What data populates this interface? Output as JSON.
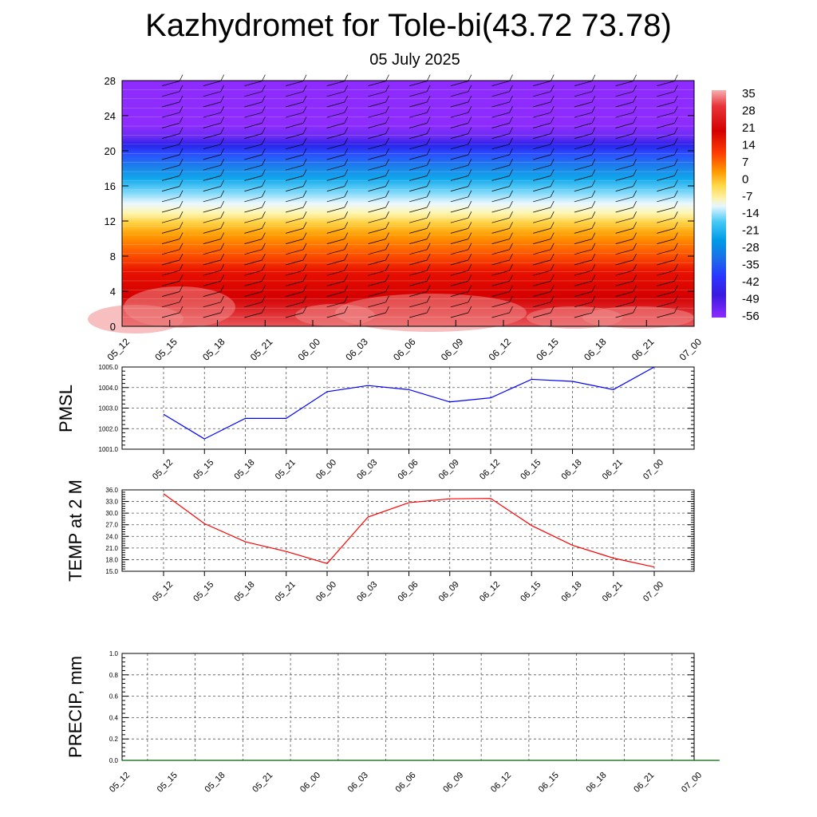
{
  "header": {
    "title": "Kazhydromet for Tole-bi(43.72 73.78)",
    "subtitle": "05 July 2025"
  },
  "time_labels": [
    "05_12",
    "05_15",
    "05_18",
    "05_21",
    "06_00",
    "06_03",
    "06_06",
    "06_09",
    "06_12",
    "06_15",
    "06_18",
    "06_21",
    "07_00"
  ],
  "chart_data": [
    {
      "type": "heatmap",
      "description_key": "vertical cross-section",
      "x": [
        "05_12",
        "05_15",
        "05_18",
        "05_21",
        "06_00",
        "06_03",
        "06_06",
        "06_09",
        "06_12",
        "06_15",
        "06_18",
        "06_21",
        "07_00"
      ],
      "ylim": [
        0,
        28
      ],
      "yticks": [
        0,
        4,
        8,
        12,
        16,
        20,
        24,
        28
      ],
      "colorbar_labels": [
        "35",
        "28",
        "21",
        "14",
        "7",
        "0",
        "-7",
        "-14",
        "-21",
        "-28",
        "-35",
        "-42",
        "-49",
        "-56"
      ],
      "colorbar_colors": [
        "#f4a3a3",
        "#e8343a",
        "#d40000",
        "#ff4000",
        "#ff9a00",
        "#ffd84a",
        "#fff0a0",
        "#e7f6ff",
        "#45c8f5",
        "#009be6",
        "#1a6ee8",
        "#2836ff",
        "#3a1ae0",
        "#8e2cff"
      ],
      "grid": false
    },
    {
      "type": "line",
      "ylabel": "PMSL",
      "x": [
        "05_12",
        "05_15",
        "05_18",
        "05_21",
        "06_00",
        "06_03",
        "06_06",
        "06_09",
        "06_12",
        "06_15",
        "06_18",
        "06_21",
        "07_00"
      ],
      "series": [
        {
          "values": [
            1002.7,
            1001.5,
            1002.5,
            1002.5,
            1003.8,
            1004.1,
            1003.9,
            1003.3,
            1003.5,
            1004.4,
            1004.3,
            1003.9,
            1005.0
          ],
          "color": "#0000ff"
        }
      ],
      "ylim": [
        1001.0,
        1005.0
      ],
      "ytick_labels": [
        "1001.0",
        "1002.0",
        "1003.0",
        "1004.0",
        "1005.0"
      ],
      "grid": true
    },
    {
      "type": "line",
      "ylabel": "TEMP at 2 M",
      "x": [
        "05_12",
        "05_15",
        "05_18",
        "05_21",
        "06_00",
        "06_03",
        "06_06",
        "06_09",
        "06_12",
        "06_15",
        "06_18",
        "06_21",
        "07_00"
      ],
      "series": [
        {
          "values": [
            35.0,
            27.3,
            22.6,
            20.1,
            17.0,
            29.0,
            32.7,
            33.7,
            33.8,
            26.8,
            21.7,
            18.4,
            16.1
          ],
          "color": "#ff0000"
        }
      ],
      "ylim": [
        15.0,
        36.0
      ],
      "ytick_labels": [
        "15.0",
        "18.0",
        "21.0",
        "24.0",
        "27.0",
        "30.0",
        "33.0",
        "36.0"
      ],
      "grid": true
    },
    {
      "type": "line",
      "ylabel": "PRECIP, mm",
      "x": [
        "05_12",
        "05_15",
        "05_18",
        "05_21",
        "06_00",
        "06_03",
        "06_06",
        "06_09",
        "06_12",
        "06_15",
        "06_18",
        "06_21",
        "07_00"
      ],
      "series": [
        {
          "values": [
            0,
            0,
            0,
            0,
            0,
            0,
            0,
            0,
            0,
            0,
            0,
            0,
            0
          ],
          "color": "#006400"
        }
      ],
      "ylim": [
        0.0,
        1.0
      ],
      "ytick_labels": [
        "0.0",
        "0.2",
        "0.4",
        "0.6",
        "0.8",
        "1.0"
      ],
      "grid": true
    }
  ]
}
